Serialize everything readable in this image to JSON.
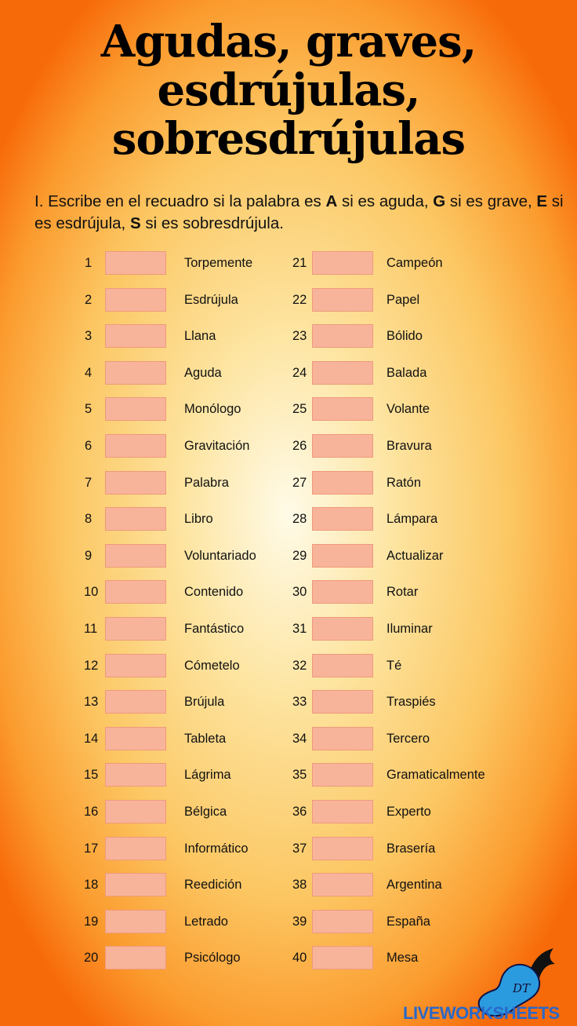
{
  "title": [
    "Agudas, graves,",
    "esdrújulas,",
    "sobresdrújulas"
  ],
  "instructions": {
    "p1": "I. Escribe en el recuadro si la palabra es ",
    "A": "A",
    "p2": " si es aguda, ",
    "G": "G",
    "p3": " si es grave, ",
    "E": "E",
    "p4": " si es esdrújula, ",
    "S": "S",
    "p5": " si es sobresdrújula."
  },
  "left": [
    {
      "n": "1",
      "w": "Torpemente"
    },
    {
      "n": "2",
      "w": "Esdrújula"
    },
    {
      "n": "3",
      "w": "Llana"
    },
    {
      "n": "4",
      "w": "Aguda"
    },
    {
      "n": "5",
      "w": "Monólogo"
    },
    {
      "n": "6",
      "w": "Gravitación"
    },
    {
      "n": "7",
      "w": "Palabra"
    },
    {
      "n": "8",
      "w": "Libro"
    },
    {
      "n": "9",
      "w": "Voluntariado"
    },
    {
      "n": "10",
      "w": "Contenido"
    },
    {
      "n": "11",
      "w": "Fantástico"
    },
    {
      "n": "12",
      "w": "Cómetelo"
    },
    {
      "n": "13",
      "w": "Brújula"
    },
    {
      "n": "14",
      "w": "Tableta"
    },
    {
      "n": "15",
      "w": "Lágrima"
    },
    {
      "n": "16",
      "w": "Bélgica"
    },
    {
      "n": "17",
      "w": "Informático"
    },
    {
      "n": "18",
      "w": "Reedición"
    },
    {
      "n": "19",
      "w": "Letrado"
    },
    {
      "n": "20",
      "w": "Psicólogo"
    }
  ],
  "right": [
    {
      "n": "21",
      "w": "Campeón"
    },
    {
      "n": "22",
      "w": "Papel"
    },
    {
      "n": "23",
      "w": "Bólido"
    },
    {
      "n": "24",
      "w": "Balada"
    },
    {
      "n": "25",
      "w": "Volante"
    },
    {
      "n": "26",
      "w": "Bravura"
    },
    {
      "n": "27",
      "w": "Ratón"
    },
    {
      "n": "28",
      "w": "Lámpara"
    },
    {
      "n": "29",
      "w": "Actualizar"
    },
    {
      "n": "30",
      "w": "Rotar"
    },
    {
      "n": "31",
      "w": "Iluminar"
    },
    {
      "n": "32",
      "w": "Té"
    },
    {
      "n": "33",
      "w": "Traspiés"
    },
    {
      "n": "34",
      "w": "Tercero"
    },
    {
      "n": "35",
      "w": "Gramaticalmente"
    },
    {
      "n": "36",
      "w": "Experto"
    },
    {
      "n": "37",
      "w": "Brasería"
    },
    {
      "n": "38",
      "w": "Argentina"
    },
    {
      "n": "39",
      "w": "España"
    },
    {
      "n": "40",
      "w": "Mesa"
    }
  ],
  "answers_box_color": "#f8b49a",
  "watermark": "LIVEWORKSHEETS",
  "mascot_text": "DT"
}
